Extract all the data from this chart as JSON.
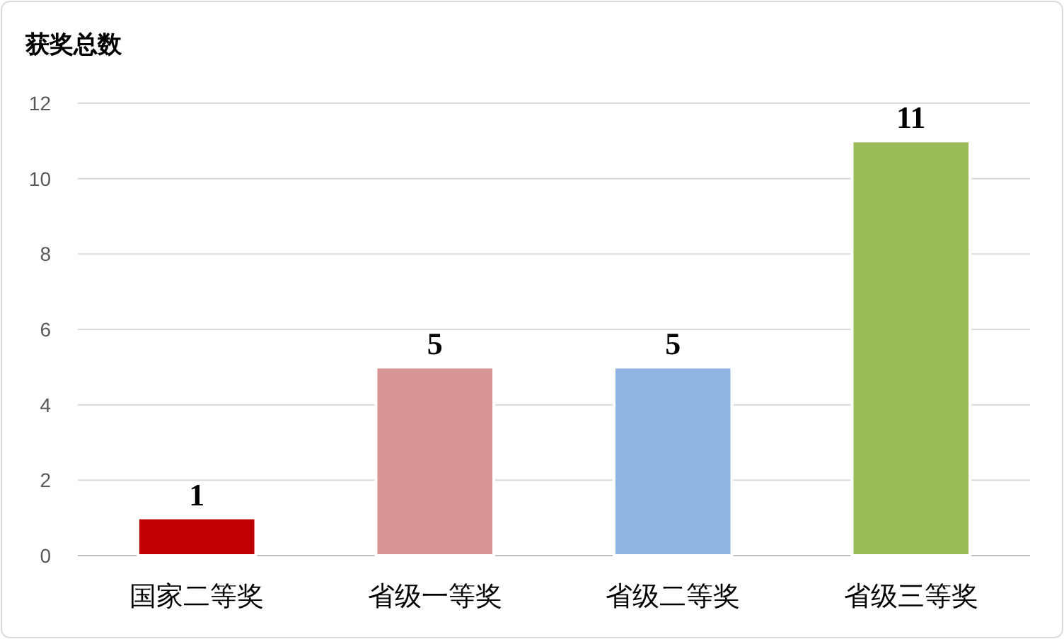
{
  "chart_data": {
    "type": "bar",
    "title": "获奖总数",
    "categories": [
      "国家二等奖",
      "省级一等奖",
      "省级二等奖",
      "省级三等奖"
    ],
    "values": [
      1,
      5,
      5,
      11
    ],
    "colors": [
      "#c00000",
      "#d99594",
      "#8eb4e3",
      "#9bbb59"
    ],
    "ylim": [
      0,
      12
    ],
    "yticks": [
      0,
      2,
      4,
      6,
      8,
      10,
      12
    ],
    "grid": "y",
    "data_labels": true
  }
}
